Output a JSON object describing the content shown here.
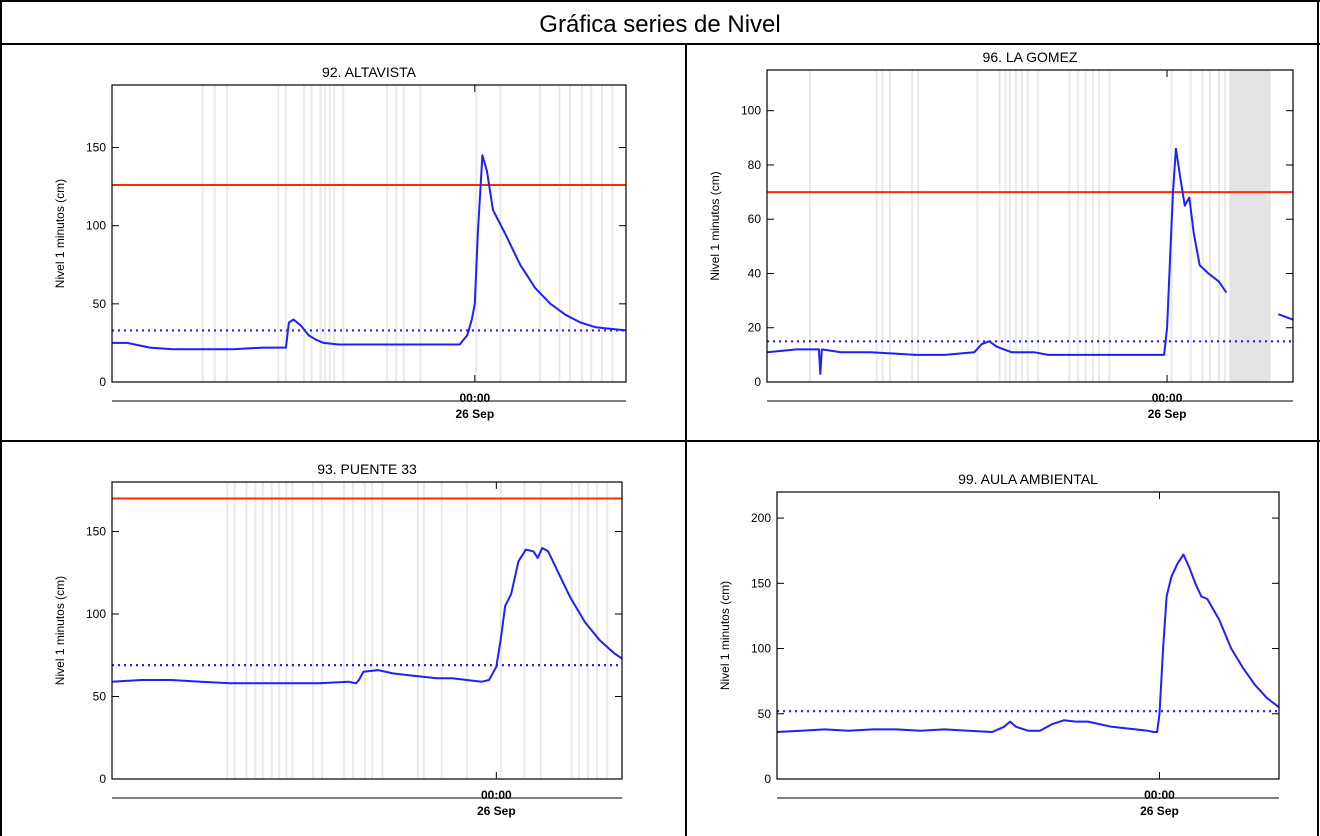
{
  "page_title": "Gráfica series de Nivel",
  "colors": {
    "series": "#1f1fff",
    "threshold": "#ff2a00",
    "gap_shade": "#e4e4e4",
    "gap_line": "#e9e9e9"
  },
  "chart_data": [
    {
      "type": "line",
      "title": "92. ALTAVISTA",
      "ylabel": "Nivel 1 minutos (cm)",
      "ylim": [
        0,
        190
      ],
      "yticks": [
        0,
        50,
        100,
        150
      ],
      "xlim": [
        -24,
        10
      ],
      "xticks": [
        {
          "x": 0,
          "label": "00:00"
        }
      ],
      "date_label": "26 Sep",
      "series": [
        {
          "x": [
            -24,
            -23,
            -21.5,
            -20,
            -18,
            -16,
            -14,
            -12.5,
            -12.3,
            -12,
            -11.5,
            -11,
            -10.5,
            -10,
            -9,
            -8,
            -6,
            -4,
            -2,
            -1,
            -0.5,
            -0.2,
            0,
            0.2,
            0.5,
            0.8,
            1.2,
            2,
            3,
            4,
            5,
            6,
            7,
            8,
            9,
            10
          ],
          "y": [
            25,
            25,
            22,
            21,
            21,
            21,
            22,
            22,
            38,
            40,
            36,
            30,
            27,
            25,
            24,
            24,
            24,
            24,
            24,
            24,
            30,
            40,
            50,
            95,
            145,
            135,
            110,
            95,
            75,
            60,
            50,
            43,
            38,
            35,
            34,
            33
          ]
        }
      ],
      "threshold_line": 126,
      "reference_line": 33,
      "gap_lines_x": [
        -18,
        -17.2,
        -16.4,
        -13,
        -12.5,
        -11.3,
        -10.8,
        -10.2,
        -9.9,
        -9.6,
        -9.3,
        -8.7,
        -5.8,
        -5.2,
        -4.7,
        -3.6,
        0.1,
        1.7,
        4.3,
        5.6,
        6.3,
        7.1,
        7.7,
        8.4,
        9.1
      ]
    },
    {
      "type": "line",
      "title": "96. LA GOMEZ",
      "ylabel": "Nivel 1 minutos (cm)",
      "ylim": [
        0,
        115
      ],
      "yticks": [
        0,
        20,
        40,
        60,
        80,
        100
      ],
      "xlim": [
        -27,
        8.5
      ],
      "xticks": [
        {
          "x": 0,
          "label": "00:00"
        }
      ],
      "date_label": "26 Sep",
      "series": [
        {
          "x": [
            -27,
            -25,
            -23.5,
            -23.4,
            -23.3,
            -22,
            -20,
            -17,
            -15,
            -13,
            -12.5,
            -12,
            -11.5,
            -11,
            -10.5,
            -9,
            -8,
            -6,
            -4,
            -2,
            -0.5,
            -0.2,
            0,
            0.2,
            0.4,
            0.6,
            0.9,
            1.2,
            1.5,
            1.8,
            2.2,
            2.8,
            3.5,
            4
          ],
          "y": [
            11,
            12,
            12,
            3,
            12,
            11,
            11,
            10,
            10,
            11,
            14,
            15,
            13,
            12,
            11,
            11,
            10,
            10,
            10,
            10,
            10,
            10,
            20,
            45,
            70,
            86,
            75,
            65,
            68,
            55,
            43,
            40,
            37,
            33
          ]
        },
        {
          "x": [
            7.5,
            8,
            8.5
          ],
          "y": [
            25,
            24,
            23
          ]
        }
      ],
      "threshold_line": 70,
      "reference_line": 15,
      "gap_shade_x": [
        4.2,
        7.0
      ],
      "gap_lines_x": [
        -24.1,
        -19.6,
        -19.2,
        -18.7,
        -17.2,
        -16.8,
        -12.8,
        -11.3,
        -10.9,
        -10.6,
        -10.2,
        -9.8,
        -9.4,
        -8.7,
        -6.6,
        -6.0,
        -5.5,
        -5.0,
        -4.6,
        -3.9,
        0.3,
        1.6,
        2.4,
        2.9,
        3.5,
        3.9
      ]
    },
    {
      "type": "line",
      "title": "93. PUENTE 33",
      "ylabel": "Nivel 1 minutos (cm)",
      "ylim": [
        0,
        180
      ],
      "yticks": [
        0,
        50,
        100,
        150
      ],
      "xlim": [
        -26,
        8.5
      ],
      "xticks": [
        {
          "x": 0,
          "label": "00:00"
        }
      ],
      "date_label": "26 Sep",
      "series": [
        {
          "x": [
            -26,
            -24,
            -22,
            -20,
            -18,
            -16,
            -14,
            -12,
            -10,
            -9.5,
            -9.3,
            -9,
            -8,
            -7,
            -6,
            -5,
            -4,
            -3,
            -2,
            -1,
            -0.5,
            0,
            0.3,
            0.6,
            1.0,
            1.5,
            2.0,
            2.5,
            2.8,
            3.1,
            3.5,
            4.2,
            5,
            6,
            7,
            8,
            8.5
          ],
          "y": [
            59,
            60,
            60,
            59,
            58,
            58,
            58,
            58,
            59,
            58,
            60,
            65,
            66,
            64,
            63,
            62,
            61,
            61,
            60,
            59,
            60,
            68,
            85,
            105,
            112,
            132,
            139,
            138,
            134,
            140,
            138,
            125,
            110,
            95,
            84,
            76,
            73
          ]
        }
      ],
      "threshold_line": 170,
      "reference_line": 69,
      "gap_lines_x": [
        -18.2,
        -17.7,
        -16.9,
        -16.3,
        -15.8,
        -15.2,
        -14.7,
        -14.2,
        -13.8,
        -12.4,
        -11.8,
        -10.3,
        -9.7,
        -8.9,
        -8.4,
        -7.7,
        -5.3,
        -4.9,
        -3.7,
        -2.0,
        0.3,
        1.9,
        3.0,
        5.1,
        5.6,
        6.2,
        6.8,
        7.5
      ]
    },
    {
      "type": "line",
      "title": "99. AULA AMBIENTAL",
      "ylabel": "Nivel 1 minutos (cm)",
      "ylim": [
        0,
        220
      ],
      "yticks": [
        0,
        50,
        100,
        150,
        200
      ],
      "xlim": [
        -32,
        10
      ],
      "xticks": [
        {
          "x": 0,
          "label": "00:00"
        }
      ],
      "date_label": "26 Sep",
      "series": [
        {
          "x": [
            -32,
            -30,
            -28,
            -26,
            -24,
            -22,
            -20,
            -18,
            -16,
            -14,
            -13,
            -12.5,
            -12,
            -11,
            -10,
            -9,
            -8,
            -7,
            -6,
            -4,
            -2,
            -1,
            -0.5,
            -0.2,
            0,
            0.3,
            0.6,
            1,
            1.5,
            2.0,
            2.5,
            3,
            3.5,
            4,
            5,
            6,
            7,
            8,
            9,
            10
          ],
          "y": [
            36,
            37,
            38,
            37,
            38,
            38,
            37,
            38,
            37,
            36,
            40,
            44,
            40,
            37,
            37,
            42,
            45,
            44,
            44,
            40,
            38,
            37,
            36,
            36,
            50,
            100,
            140,
            155,
            165,
            172,
            162,
            150,
            140,
            138,
            122,
            100,
            85,
            72,
            62,
            55
          ]
        }
      ],
      "threshold_line": null,
      "reference_line": 52,
      "gap_lines_x": []
    }
  ]
}
